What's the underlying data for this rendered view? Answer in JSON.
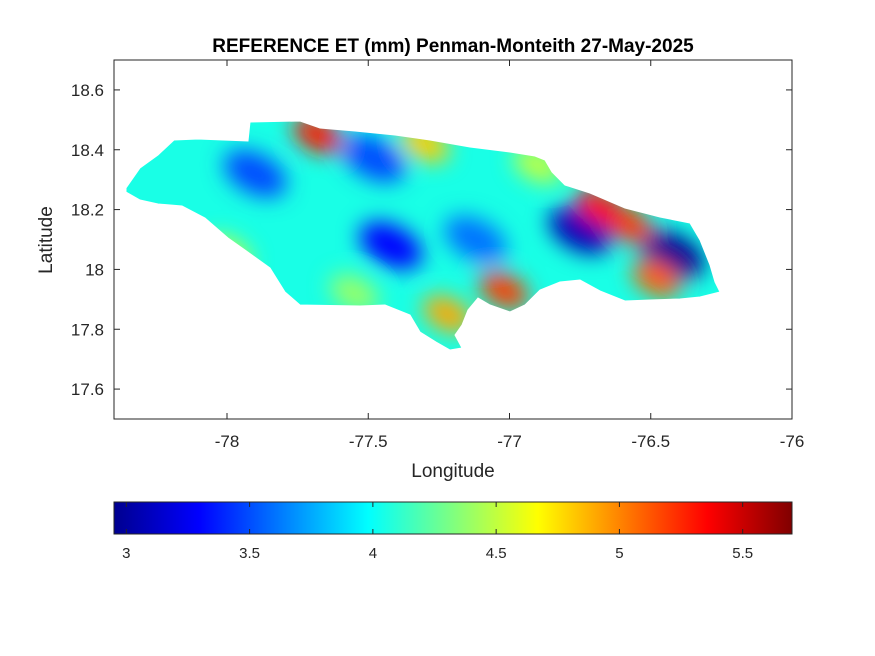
{
  "chart_data": {
    "type": "heatmap",
    "title": "REFERENCE ET (mm) Penman-Monteith 27-May-2025",
    "xlabel": "Longitude",
    "ylabel": "Latitude",
    "xlim": [
      -78.4,
      -76.0
    ],
    "ylim": [
      17.5,
      18.7
    ],
    "xticks": [
      "-78",
      "-77.5",
      "-77",
      "-76.5",
      "-76"
    ],
    "yticks": [
      "18.6",
      "18.4",
      "18.2",
      "18",
      "17.8",
      "17.6"
    ],
    "grid": false,
    "colormap": "jet",
    "colorbar": {
      "orientation": "horizontal",
      "location": "bottom",
      "range": [
        2.95,
        5.7
      ],
      "ticks": [
        "3",
        "3.5",
        "4",
        "4.5",
        "5",
        "5.5"
      ]
    },
    "hotspots": [
      {
        "lon": -76.75,
        "lat": 18.13,
        "value": 3.1
      },
      {
        "lon": -76.42,
        "lat": 18.05,
        "value": 3.0
      },
      {
        "lon": -77.9,
        "lat": 18.32,
        "value": 3.5
      },
      {
        "lon": -77.42,
        "lat": 18.08,
        "value": 3.3
      },
      {
        "lon": -77.48,
        "lat": 18.37,
        "value": 3.5
      },
      {
        "lon": -77.12,
        "lat": 18.1,
        "value": 3.6
      },
      {
        "lon": -77.68,
        "lat": 18.45,
        "value": 5.3
      },
      {
        "lon": -76.58,
        "lat": 18.15,
        "value": 5.2
      },
      {
        "lon": -76.68,
        "lat": 18.21,
        "value": 5.3
      },
      {
        "lon": -77.02,
        "lat": 17.93,
        "value": 5.2
      },
      {
        "lon": -77.22,
        "lat": 17.85,
        "value": 4.9
      },
      {
        "lon": -76.48,
        "lat": 17.97,
        "value": 5.1
      },
      {
        "lon": -77.3,
        "lat": 18.42,
        "value": 4.8
      },
      {
        "lon": -78.0,
        "lat": 18.05,
        "value": 4.5
      },
      {
        "lon": -77.55,
        "lat": 17.92,
        "value": 4.4
      },
      {
        "lon": -76.9,
        "lat": 18.35,
        "value": 4.5
      }
    ],
    "background_value": 4.05
  }
}
